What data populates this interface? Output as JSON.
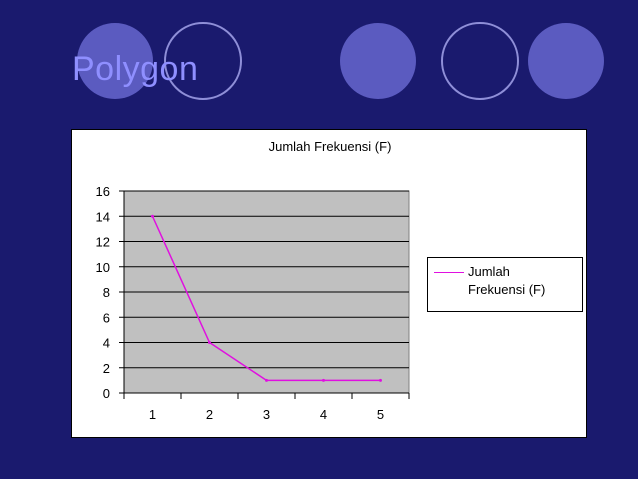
{
  "slide": {
    "title": "Polygon"
  },
  "colors": {
    "background": "#1a1a6e",
    "title": "#8f8fff",
    "circle_fill": "#5b5bc0",
    "circle_outline": "#8f8fd8",
    "plot_area": "#c0c0c0",
    "series_line": "#e010e0"
  },
  "chart_data": {
    "type": "line",
    "title": "Jumlah  Frekuensi (F)",
    "categories": [
      "1",
      "2",
      "3",
      "4",
      "5"
    ],
    "series": [
      {
        "name": "Jumlah Frekuensi (F)",
        "values": [
          14,
          4,
          1,
          1,
          1
        ]
      }
    ],
    "ylim": [
      0,
      16
    ],
    "yticks": [
      0,
      2,
      4,
      6,
      8,
      10,
      12,
      14,
      16
    ],
    "grid": true,
    "legend": "right",
    "legend_lines": [
      "Jumlah",
      "Frekuensi (F)"
    ]
  }
}
